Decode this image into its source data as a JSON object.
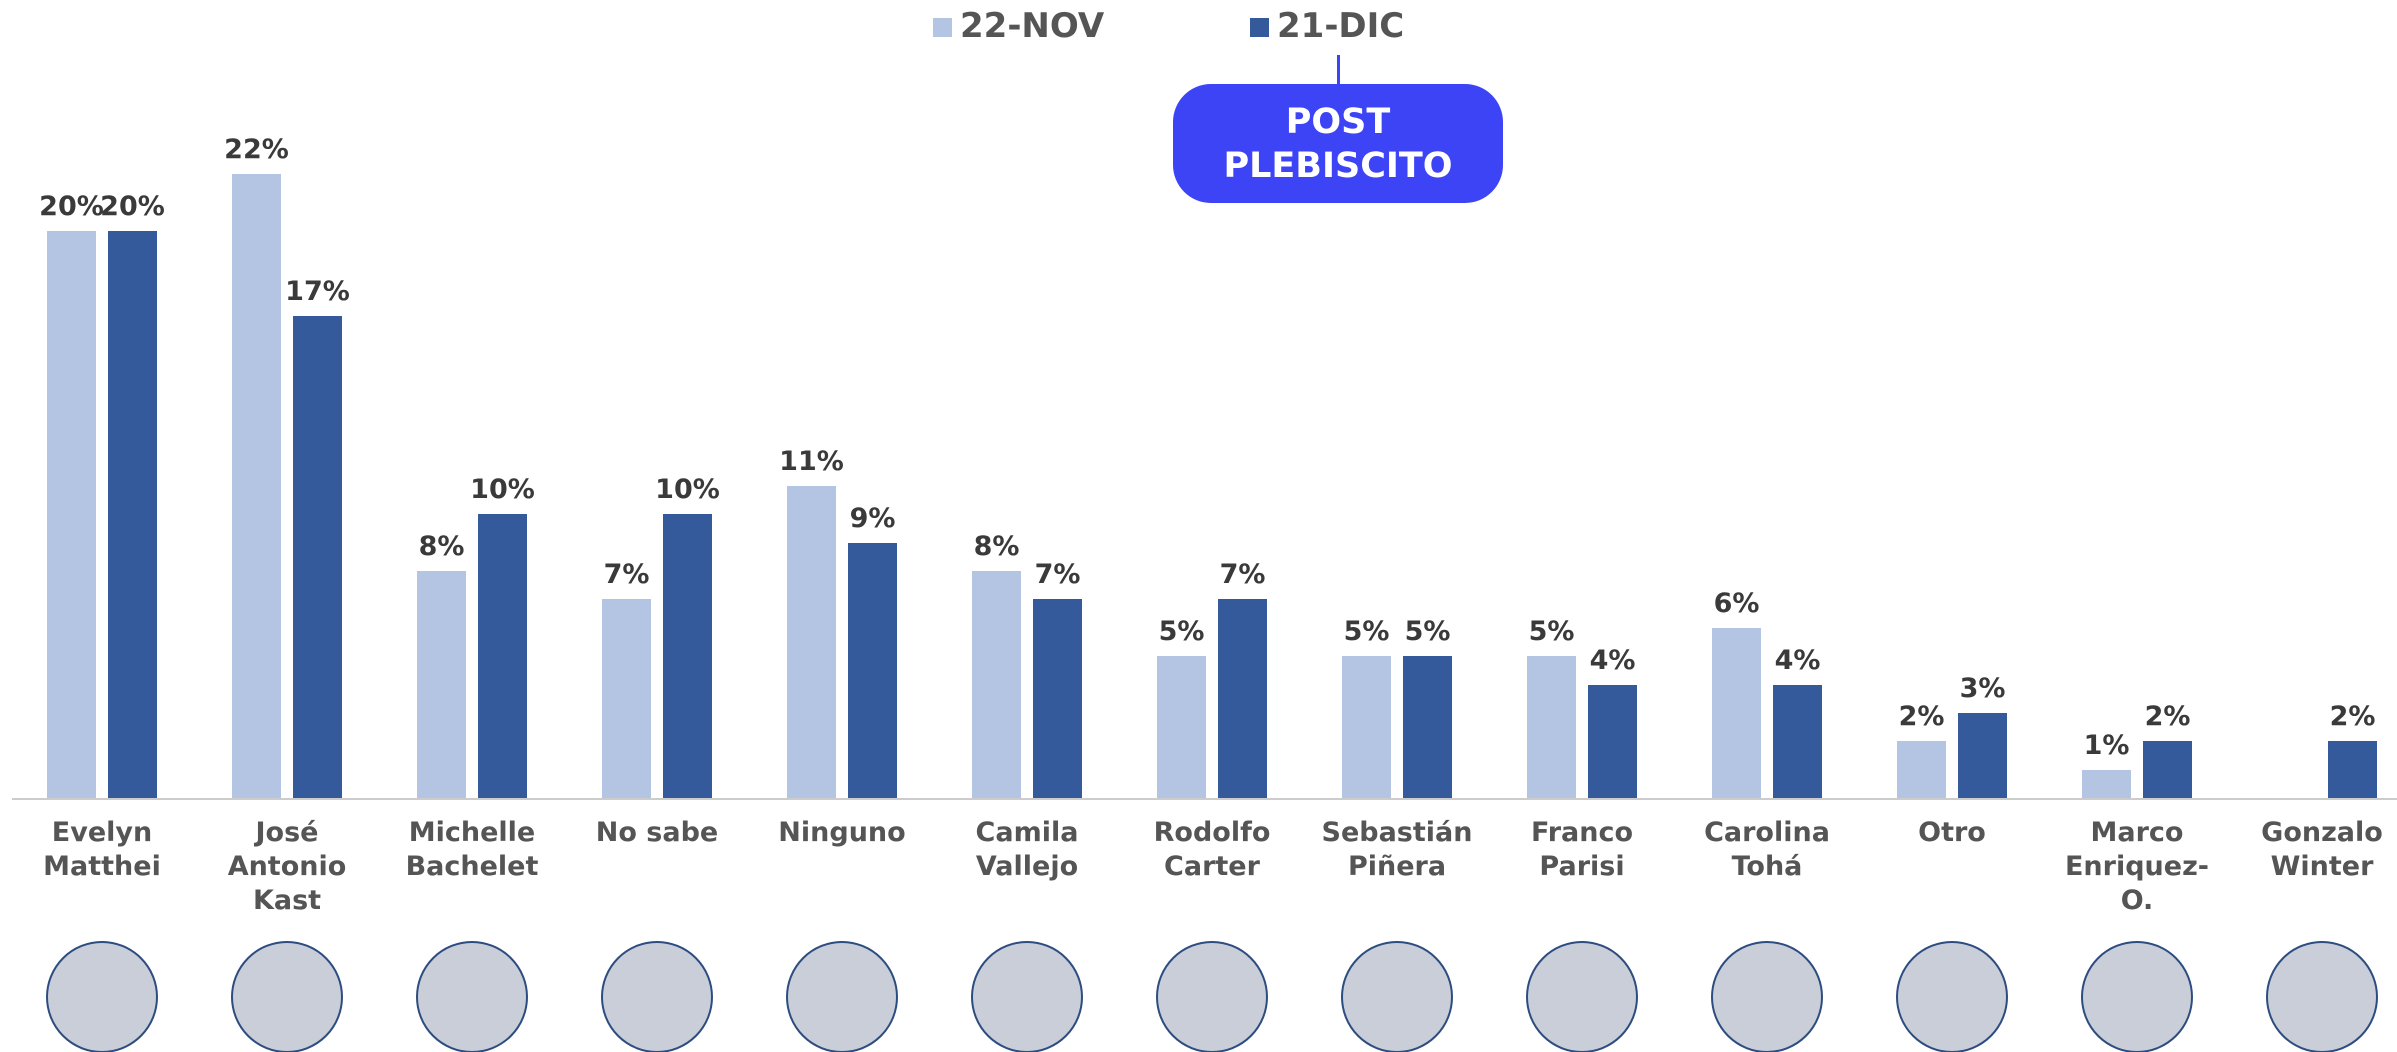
{
  "chart_data": {
    "type": "bar",
    "categories": [
      "Evelyn Matthei",
      "José Antonio Kast",
      "Michelle Bachelet",
      "No sabe",
      "Ninguno",
      "Camila Vallejo",
      "Rodolfo Carter",
      "Sebastián Piñera",
      "Franco Parisi",
      "Carolina Tohá",
      "Otro",
      "Marco Enriquez-O.",
      "Gonzalo Winter"
    ],
    "series": [
      {
        "name": "22-NOV",
        "color": "#b4c5e4",
        "values": [
          20,
          22,
          8,
          7,
          11,
          8,
          5,
          5,
          5,
          6,
          2,
          1,
          null
        ],
        "value_labels": [
          "20%",
          "22%",
          "8%",
          "7%",
          "11%",
          "8%",
          "5%",
          "5%",
          "5%",
          "6%",
          "2%",
          "1%",
          null
        ]
      },
      {
        "name": "21-DIC",
        "color": "#345a9c",
        "values": [
          20,
          17,
          10,
          10,
          9,
          7,
          7,
          5,
          4,
          4,
          3,
          2,
          2
        ],
        "value_labels": [
          "20%",
          "17%",
          "10%",
          "10%",
          "9%",
          "7%",
          "7%",
          "5%",
          "4%",
          "4%",
          "3%",
          "2%",
          "2%"
        ]
      }
    ],
    "annotation": "POST PLEBISCITO"
  }
}
